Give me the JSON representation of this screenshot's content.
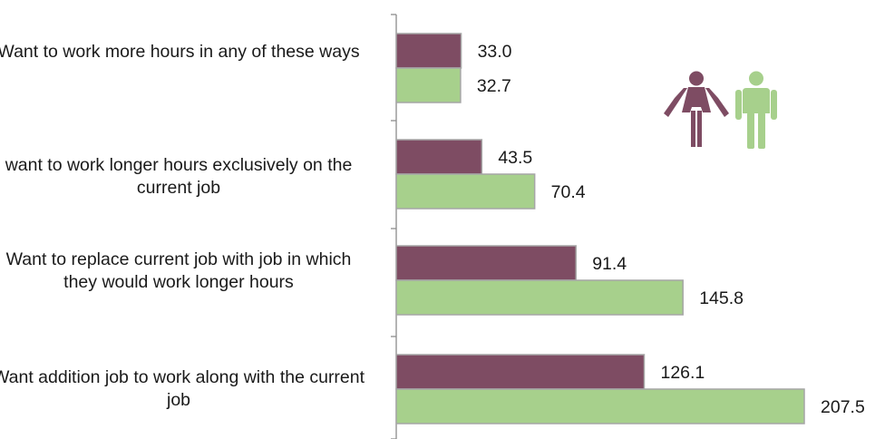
{
  "chart_data": {
    "type": "bar",
    "orientation": "horizontal",
    "categories": [
      "Want to work more hours in any of these ways",
      "want to work longer hours exclusively on the current job",
      "Want to replace current job with job in which they would work longer hours",
      "Want addition job to work along with the current job"
    ],
    "series": [
      {
        "values": [
          33.0,
          43.5,
          91.4,
          126.1
        ],
        "color": "#7e4c63",
        "icon": "female-figure-icon"
      },
      {
        "values": [
          32.7,
          70.4,
          145.8,
          207.5
        ],
        "color": "#a7d08c",
        "icon": "male-figure-icon"
      }
    ],
    "value_labels": [
      [
        "33.0",
        "43.5",
        "91.4",
        "126.1"
      ],
      [
        "32.7",
        "70.4",
        "145.8",
        "207.5"
      ]
    ],
    "xlim": [
      0,
      207.5
    ],
    "grid": false,
    "legend": "top-right icons"
  }
}
